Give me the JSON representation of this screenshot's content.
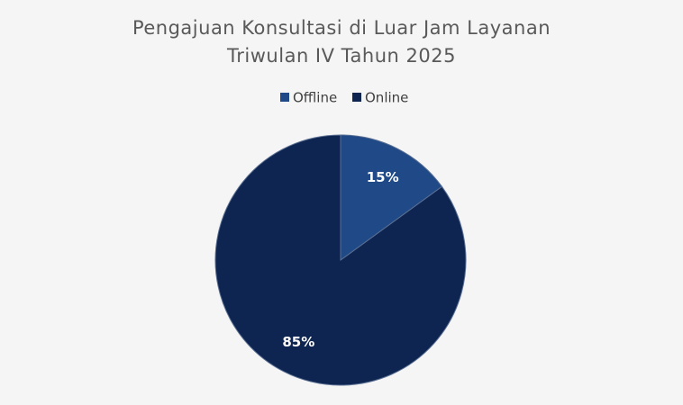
{
  "chart_data": {
    "type": "pie",
    "title": [
      "Pengajuan Konsultasi di Luar Jam Layanan",
      "Triwulan IV Tahun 2025"
    ],
    "categories": [
      "Offline",
      "Online"
    ],
    "values": [
      15,
      85
    ],
    "value_labels": [
      "15%",
      "85%"
    ],
    "colors": [
      "#1f4a87",
      "#0f2551"
    ],
    "legend": "top"
  }
}
